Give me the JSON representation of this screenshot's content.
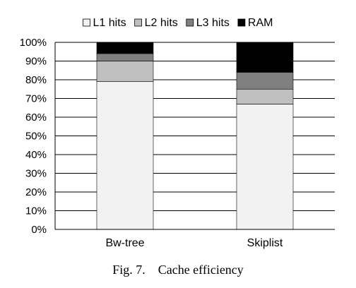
{
  "caption": {
    "label": "Fig. 7.",
    "title": "Cache efficiency"
  },
  "chart_data": {
    "type": "bar",
    "stacked": true,
    "categories": [
      "Bw-tree",
      "Skiplist"
    ],
    "series": [
      {
        "name": "L1 hits",
        "values": [
          79,
          67
        ],
        "color": "#f2f2f2"
      },
      {
        "name": "L2 hits",
        "values": [
          11,
          8
        ],
        "color": "#bfbfbf"
      },
      {
        "name": "L3 hits",
        "values": [
          4,
          9
        ],
        "color": "#808080"
      },
      {
        "name": "RAM",
        "values": [
          6,
          16
        ],
        "color": "#000000"
      }
    ],
    "ylim": [
      0,
      100
    ],
    "yticks": [
      "0%",
      "10%",
      "20%",
      "30%",
      "40%",
      "50%",
      "60%",
      "70%",
      "80%",
      "90%",
      "100%"
    ],
    "grid": true,
    "legend": "top"
  }
}
